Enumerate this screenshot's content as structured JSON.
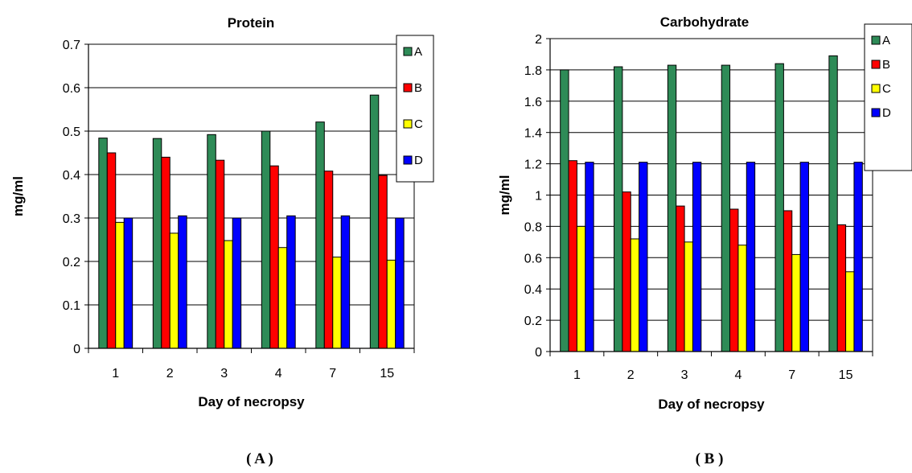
{
  "chart_data": [
    {
      "type": "bar",
      "title": "Protein",
      "xlabel": "Day of necropsy",
      "ylabel": "mg/ml",
      "ylim": [
        0,
        0.7
      ],
      "yticks": [
        "0",
        "0.1",
        "0.2",
        "0.3",
        "0.4",
        "0.5",
        "0.6",
        "0.7"
      ],
      "grid": true,
      "legend_position": "top-right",
      "categories": [
        "1",
        "2",
        "3",
        "4",
        "7",
        "15"
      ],
      "series": [
        {
          "name": "A",
          "color": "#2e8b57",
          "values": [
            0.484,
            0.483,
            0.492,
            0.5,
            0.521,
            0.583
          ]
        },
        {
          "name": "B",
          "color": "#ff0000",
          "values": [
            0.45,
            0.44,
            0.433,
            0.42,
            0.408,
            0.398
          ]
        },
        {
          "name": "C",
          "color": "#ffff00",
          "values": [
            0.29,
            0.265,
            0.248,
            0.232,
            0.21,
            0.203
          ]
        },
        {
          "name": "D",
          "color": "#0000ff",
          "values": [
            0.3,
            0.305,
            0.3,
            0.305,
            0.305,
            0.3
          ]
        }
      ]
    },
    {
      "type": "bar",
      "title": "Carbohydrate",
      "xlabel": "Day of necropsy",
      "ylabel": "mg/ml",
      "ylim": [
        0,
        2
      ],
      "yticks": [
        "0",
        "0.2",
        "0.4",
        "0.6",
        "0.8",
        "1",
        "1.2",
        "1.4",
        "1.6",
        "1.8",
        "2"
      ],
      "grid": true,
      "legend_position": "top-right",
      "categories": [
        "1",
        "2",
        "3",
        "4",
        "7",
        "15"
      ],
      "series": [
        {
          "name": "A",
          "color": "#2e8b57",
          "values": [
            1.8,
            1.82,
            1.83,
            1.83,
            1.84,
            1.89
          ]
        },
        {
          "name": "B",
          "color": "#ff0000",
          "values": [
            1.22,
            1.02,
            0.93,
            0.91,
            0.9,
            0.81
          ]
        },
        {
          "name": "C",
          "color": "#ffff00",
          "values": [
            0.8,
            0.72,
            0.7,
            0.68,
            0.62,
            0.51
          ]
        },
        {
          "name": "D",
          "color": "#0000ff",
          "values": [
            1.21,
            1.21,
            1.21,
            1.21,
            1.21,
            1.21
          ]
        }
      ]
    }
  ],
  "panel_labels": [
    "( A )",
    "( B )"
  ]
}
